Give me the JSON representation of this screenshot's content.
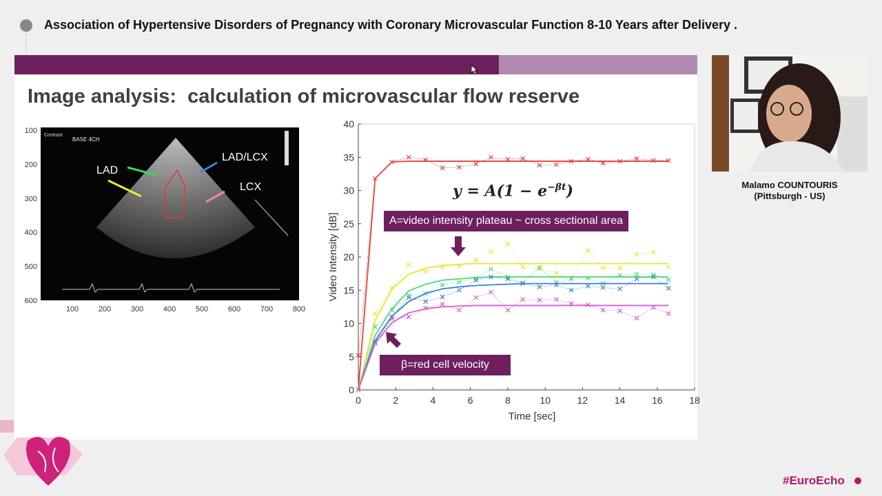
{
  "header": {
    "title": "Association of Hypertensive Disorders of Pregnancy with Coronary Microvascular Function 8-10 Years after Delivery ."
  },
  "slide": {
    "heading": "Image analysis:  calculation of microvascular flow reserve",
    "echo": {
      "view": "BASE 4CH",
      "contrast": "Contrast",
      "labels": [
        "LAD",
        "LAD/LCX",
        "LCX"
      ],
      "xticks": [
        100,
        200,
        300,
        400,
        500,
        600,
        700,
        800
      ],
      "yticks": [
        100,
        200,
        300,
        400,
        500,
        600
      ]
    },
    "formula": {
      "lhs": "y = A",
      "base": "(1 − e",
      "exponent": "−βt",
      "close": ")"
    },
    "annotations": [
      "A=video intensity plateau ~ cross sectional area",
      "β=red cell velocity"
    ]
  },
  "chart_data": {
    "type": "line",
    "xlabel": "Time [sec]",
    "ylabel": "Video Intensity [dB]",
    "x": [
      0,
      0.9,
      1.8,
      2.7,
      3.6,
      4.5,
      5.4,
      6.3,
      7.1,
      8.0,
      8.8,
      9.7,
      10.6,
      11.4,
      12.3,
      13.1,
      14.0,
      14.9,
      15.8,
      16.6
    ],
    "xlim": [
      0,
      18
    ],
    "xticks": [
      0,
      2,
      4,
      6,
      8,
      10,
      12,
      14,
      16,
      18
    ],
    "ylim": [
      0,
      40
    ],
    "yticks": [
      0,
      5,
      10,
      15,
      20,
      25,
      30,
      35,
      40
    ],
    "series": [
      {
        "color": "#e8403a",
        "values": [
          5.2,
          31.8,
          34.3,
          35.0,
          34.6,
          33.4,
          33.5,
          34.0,
          35.0,
          34.7,
          34.8,
          33.8,
          33.9,
          34.4,
          34.7,
          34.1,
          34.4,
          34.8,
          34.5,
          34.5
        ],
        "fit": [
          0,
          31.8,
          34.3,
          34.4,
          34.4,
          34.4,
          34.4,
          34.4,
          34.4,
          34.4,
          34.4,
          34.4,
          34.4,
          34.4,
          34.4,
          34.4,
          34.4,
          34.4,
          34.4,
          34.4
        ]
      },
      {
        "color": "#e6e633",
        "values": [
          0,
          11.5,
          15.3,
          18.8,
          17.8,
          18.5,
          18.6,
          19.5,
          20.8,
          22.0,
          18.5,
          18.2,
          17.6,
          16.8,
          21.0,
          18.4,
          18.3,
          20.4,
          20.7,
          18.5
        ],
        "fit": [
          0,
          10.4,
          15.2,
          17.4,
          18.3,
          18.7,
          18.9,
          19.0,
          19.0,
          19.0,
          19.0,
          19.0,
          19.0,
          19.0,
          19.0,
          19.0,
          19.0,
          19.0,
          19.0,
          19.0
        ]
      },
      {
        "color": "#4cd97a",
        "values": [
          0,
          9.5,
          12.0,
          14.2,
          14.5,
          15.8,
          16.2,
          16.8,
          18.2,
          17.0,
          16.1,
          18.4,
          16.2,
          16.7,
          16.8,
          16.0,
          17.2,
          17.4,
          17.3,
          16.6
        ],
        "fit": [
          0,
          8.2,
          12.2,
          14.9,
          15.9,
          16.5,
          16.7,
          16.9,
          17.0,
          17.0,
          17.0,
          17.0,
          17.0,
          17.0,
          17.0,
          17.0,
          17.0,
          17.0,
          17.0,
          17.0
        ]
      },
      {
        "color": "#3c7fd6",
        "values": [
          0,
          7.2,
          11.0,
          13.9,
          13.3,
          14.0,
          15.0,
          16.5,
          17.0,
          16.7,
          16.0,
          15.5,
          15.8,
          15.0,
          15.6,
          15.4,
          15.2,
          16.7,
          17.0,
          15.3
        ],
        "fit": [
          0,
          7.4,
          11.1,
          13.3,
          14.5,
          15.2,
          15.5,
          15.7,
          15.8,
          15.9,
          16.0,
          16.0,
          16.0,
          16.0,
          16.0,
          16.0,
          16.0,
          16.0,
          16.0,
          16.0
        ]
      },
      {
        "color": "#d65ad6",
        "values": [
          0,
          7.0,
          10.7,
          11.0,
          12.3,
          12.9,
          12.0,
          13.9,
          14.7,
          12.0,
          13.6,
          13.5,
          13.6,
          13.0,
          12.8,
          12.0,
          11.9,
          10.8,
          12.4,
          11.5
        ],
        "fit": [
          0,
          7.0,
          10.1,
          11.6,
          12.2,
          12.5,
          12.6,
          12.7,
          12.7,
          12.7,
          12.7,
          12.7,
          12.7,
          12.7,
          12.7,
          12.7,
          12.7,
          12.7,
          12.7,
          12.7
        ]
      }
    ]
  },
  "speaker": {
    "name": "Malamo COUNTOURIS",
    "location": "(Pittsburgh - US)"
  },
  "footer": {
    "hashtag": "#EuroEcho"
  }
}
